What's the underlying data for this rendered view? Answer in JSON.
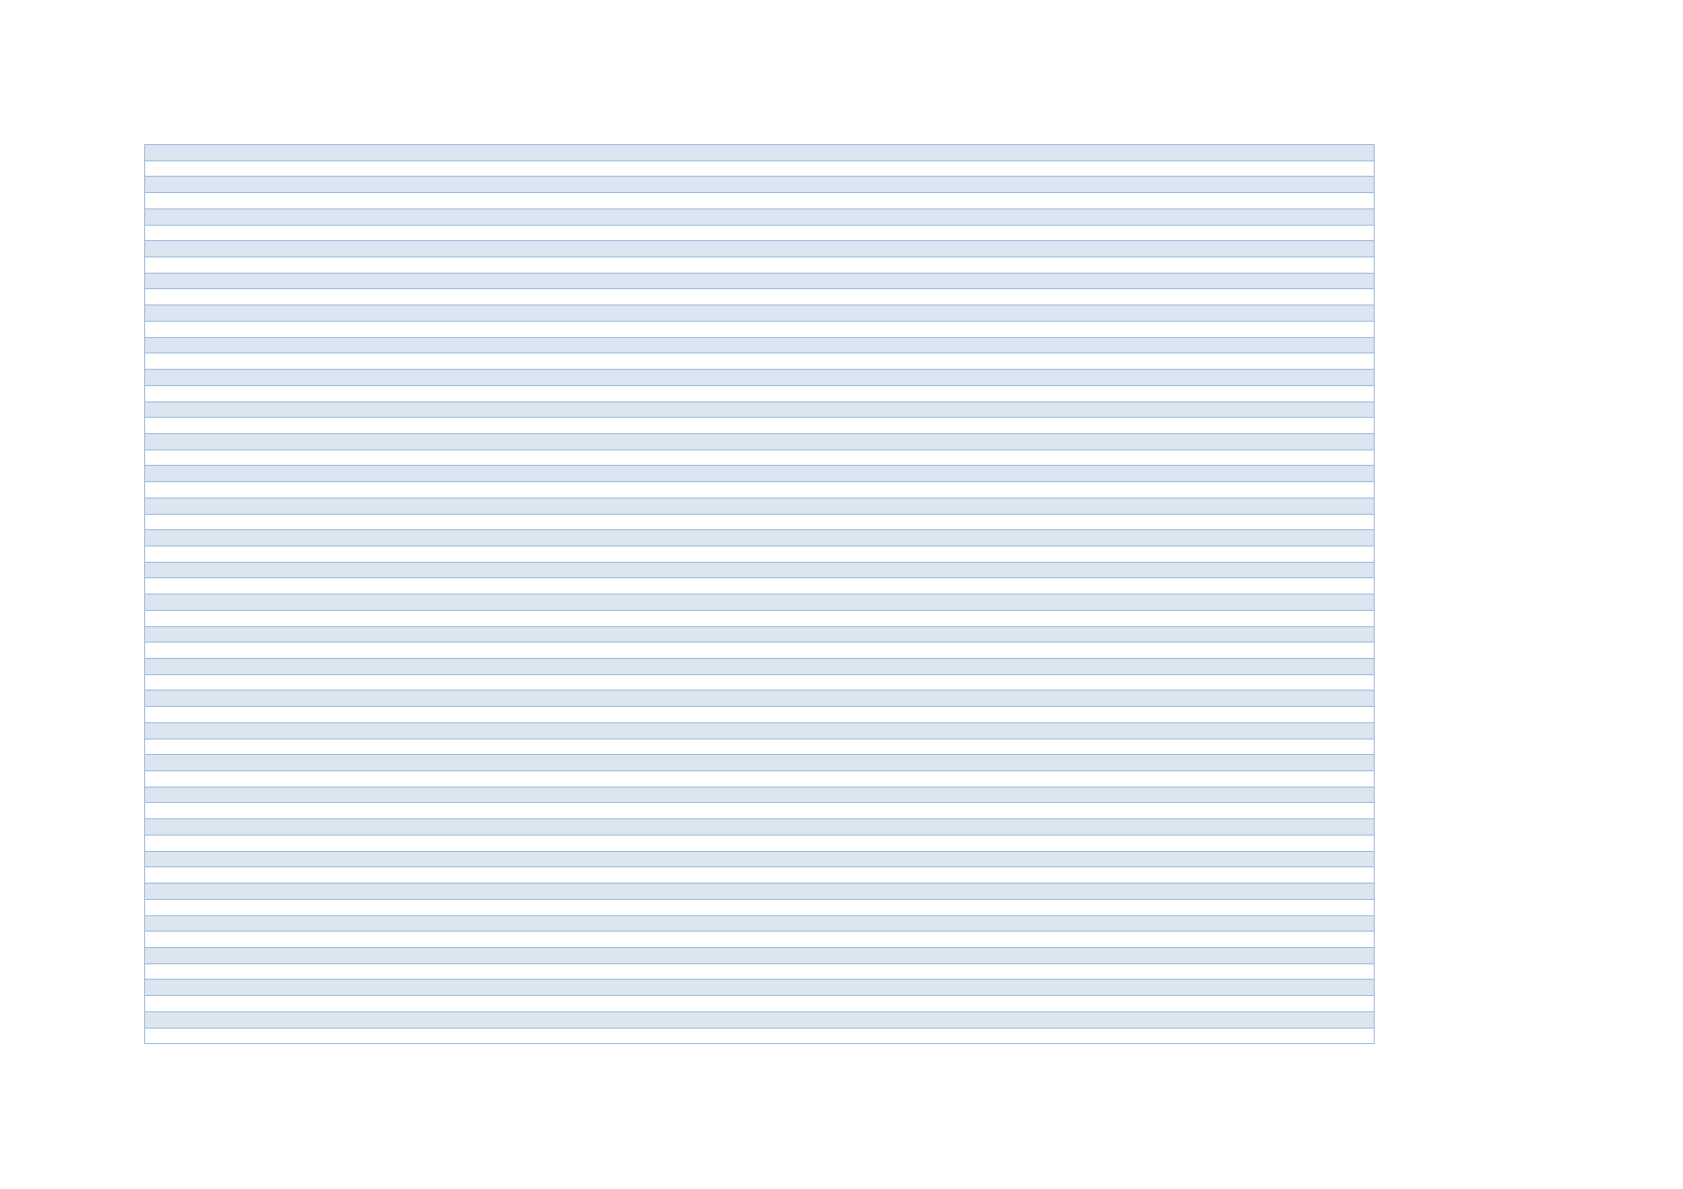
{
  "table": {
    "row_count": 56,
    "band_color": "#dce6f1",
    "alt_color": "#ffffff",
    "border_color": "#95b3d7",
    "rows_text": []
  }
}
